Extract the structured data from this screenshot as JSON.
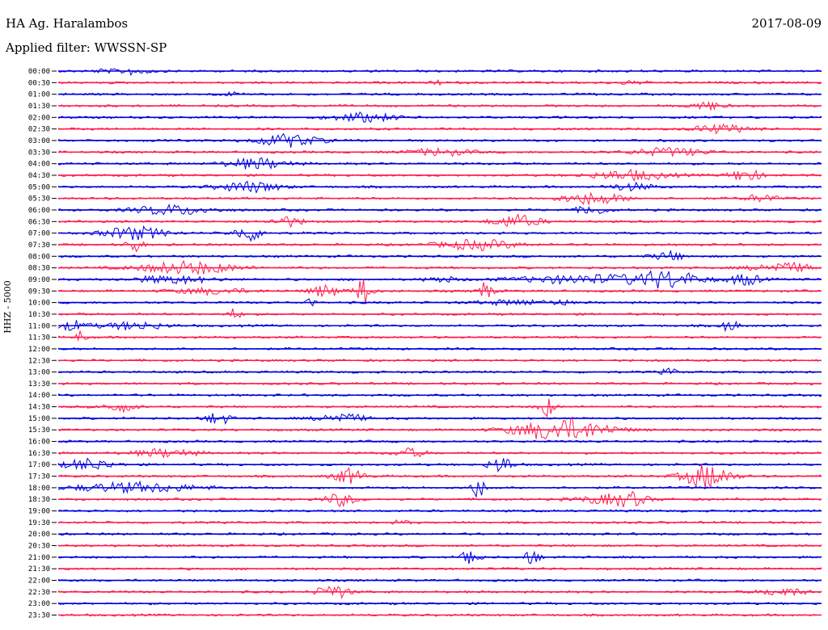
{
  "chart_data": {
    "type": "line",
    "title": "HA Ag. Haralambos",
    "date": "2017-08-09",
    "subtitle": "Applied filter: WWSSN-SP",
    "ylabel": "HHZ - 5000",
    "colors": {
      "a": "#0000e0",
      "b": "#ff1e50"
    },
    "tick_labels": [
      "00:00",
      "00:30",
      "01:00",
      "01:30",
      "02:00",
      "02:30",
      "03:00",
      "03:30",
      "04:00",
      "04:30",
      "05:00",
      "05:30",
      "06:00",
      "06:30",
      "07:00",
      "07:30",
      "08:00",
      "08:30",
      "09:00",
      "09:30",
      "10:00",
      "10:30",
      "11:00",
      "11:30",
      "12:00",
      "12:30",
      "13:00",
      "13:30",
      "14:00",
      "14:30",
      "15:00",
      "15:30",
      "16:00",
      "16:30",
      "17:00",
      "17:30",
      "18:00",
      "18:30",
      "19:00",
      "19:30",
      "20:00",
      "20:30",
      "21:00",
      "21:30",
      "22:00",
      "22:30",
      "23:00",
      "23:30"
    ],
    "events": [
      [
        0.06,
        0.015,
        0.3
      ],
      [
        0.1,
        0.02,
        0.7
      ],
      [
        0.5,
        0.01,
        0.4
      ],
      [
        0.75,
        0.02,
        0.3
      ],
      [
        0.23,
        0.02,
        0.3
      ],
      [
        0.85,
        0.02,
        0.9
      ],
      [
        0.4,
        0.04,
        0.9
      ],
      [
        0.9,
        0.02,
        0.4
      ],
      [
        0.86,
        0.03,
        0.8
      ],
      [
        0.3,
        0.04,
        1.3
      ],
      [
        0.5,
        0.04,
        0.7
      ],
      [
        0.8,
        0.05,
        0.8
      ],
      [
        0.26,
        0.04,
        1.1
      ],
      [
        0.75,
        0.05,
        1.0
      ],
      [
        0.9,
        0.02,
        1.3
      ],
      [
        0.25,
        0.04,
        1.1
      ],
      [
        0.75,
        0.03,
        0.7
      ],
      [
        0.92,
        0.02,
        0.8
      ],
      [
        0.7,
        0.04,
        1.2
      ],
      [
        0.15,
        0.05,
        1.0
      ],
      [
        0.7,
        0.02,
        0.9
      ],
      [
        0.3,
        0.02,
        1.0
      ],
      [
        0.6,
        0.03,
        1.3
      ],
      [
        0.1,
        0.04,
        1.3
      ],
      [
        0.25,
        0.02,
        1.5
      ],
      [
        0.1,
        0.01,
        1.5
      ],
      [
        0.55,
        0.05,
        1.0
      ],
      [
        0.8,
        0.02,
        0.9
      ],
      [
        0.17,
        0.06,
        1.3
      ],
      [
        0.95,
        0.04,
        1.0
      ],
      [
        0.5,
        0.02,
        0.6
      ],
      [
        0.15,
        0.05,
        0.8
      ],
      [
        0.35,
        0.02,
        1.2
      ],
      [
        0.2,
        0.05,
        0.6
      ],
      [
        0.6,
        0.05,
        0.5
      ],
      [
        0.02,
        0.02,
        1.0
      ],
      [
        0.23,
        0.01,
        1.0
      ],
      [
        0.7,
        0.1,
        0.9
      ],
      [
        0.8,
        0.04,
        1.5
      ],
      [
        0.9,
        0.02,
        1.2
      ],
      [
        0.4,
        0.01,
        3.0
      ],
      [
        0.56,
        0.01,
        1.8
      ],
      [
        0.33,
        0.005,
        1.3
      ],
      [
        0.66,
        0.005,
        1.5
      ],
      [
        0.88,
        0.01,
        1.3
      ],
      [
        0.1,
        0.04,
        0.8
      ],
      [
        0.03,
        0.005,
        2.0
      ],
      [
        0.8,
        0.01,
        0.7
      ],
      [
        0.08,
        0.02,
        1.0
      ],
      [
        0.64,
        0.01,
        2.0
      ],
      [
        0.21,
        0.015,
        1.3
      ],
      [
        0.37,
        0.03,
        1.0
      ],
      [
        0.66,
        0.06,
        2.3
      ],
      [
        0.14,
        0.04,
        0.8
      ],
      [
        0.46,
        0.02,
        0.9
      ],
      [
        0.04,
        0.03,
        1.2
      ],
      [
        0.58,
        0.015,
        1.7
      ],
      [
        0.85,
        0.03,
        2.5
      ],
      [
        0.38,
        0.02,
        1.5
      ],
      [
        0.55,
        0.01,
        2.0
      ],
      [
        0.1,
        0.08,
        1.0
      ],
      [
        0.37,
        0.02,
        1.3
      ],
      [
        0.75,
        0.02,
        1.0
      ],
      [
        0.72,
        0.04,
        0.9
      ],
      [
        0.45,
        0.01,
        0.5
      ],
      [
        0.54,
        0.01,
        2.5
      ],
      [
        0.62,
        0.01,
        1.5
      ],
      [
        0.36,
        0.02,
        1.5
      ],
      [
        0.95,
        0.03,
        0.8
      ]
    ],
    "event_rows": [
      0,
      0,
      1,
      1,
      2,
      3,
      4,
      5,
      5,
      6,
      7,
      7,
      8,
      9,
      9,
      10,
      10,
      11,
      11,
      12,
      12,
      13,
      13,
      14,
      14,
      15,
      15,
      16,
      17,
      17,
      18,
      18,
      19,
      19,
      20,
      22,
      21,
      18,
      18,
      18,
      19,
      19,
      20,
      20,
      22,
      22,
      23,
      26,
      29,
      29,
      30,
      30,
      31,
      33,
      33,
      34,
      34,
      35,
      35,
      36,
      36,
      37,
      37,
      37,
      39,
      42,
      42,
      45,
      45
    ]
  }
}
